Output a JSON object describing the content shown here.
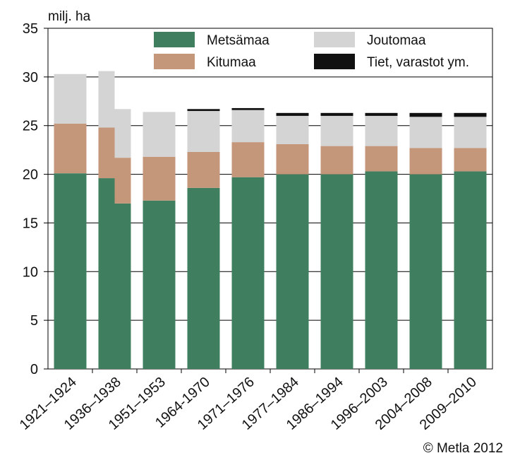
{
  "chart_data": {
    "type": "bar",
    "stacked": true,
    "unit_label": "milj. ha",
    "credit": "© Metla 2012",
    "ylim": [
      0,
      35
    ],
    "yticks": [
      "0",
      "5",
      "10",
      "15",
      "20",
      "25",
      "30",
      "35"
    ],
    "grid": "horizontal",
    "legend_position": "top",
    "categories": [
      "1921–1924",
      "1936–1938",
      "1951–1953",
      "1964-1970",
      "1971–1976",
      "1977–1984",
      "1986–1994",
      "1996–2003",
      "2004–2008",
      "2009–2010"
    ],
    "category_note": "1936–1938 is drawn as two adjacent half-width bars",
    "series": [
      {
        "name": "Metsämaa",
        "color": "#3f7f5f",
        "values": [
          20.1,
          [
            19.6,
            17.0
          ],
          17.3,
          18.6,
          19.7,
          20.0,
          20.0,
          20.3,
          20.0,
          20.3
        ]
      },
      {
        "name": "Kitumaa",
        "color": "#c4967a",
        "values": [
          5.1,
          [
            5.2,
            4.7
          ],
          4.5,
          3.7,
          3.6,
          3.1,
          2.9,
          2.6,
          2.7,
          2.4
        ]
      },
      {
        "name": "Joutomaa",
        "color": "#d4d4d4",
        "values": [
          5.1,
          [
            5.8,
            5.0
          ],
          4.6,
          4.2,
          3.3,
          2.9,
          3.1,
          3.1,
          3.2,
          3.2
        ]
      },
      {
        "name": "Tiet, varastot ym.",
        "color": "#111111",
        "values": [
          0,
          [
            0,
            0
          ],
          0,
          0.2,
          0.2,
          0.3,
          0.3,
          0.3,
          0.4,
          0.4
        ]
      }
    ]
  }
}
